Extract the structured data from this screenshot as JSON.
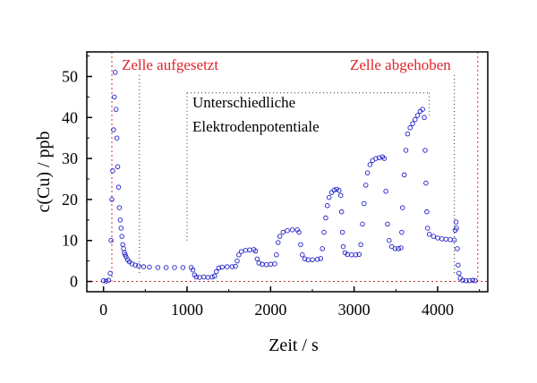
{
  "chart_data": {
    "type": "scatter",
    "title": "",
    "xlabel": "Zeit / s",
    "ylabel": "c(Cu) / ppb",
    "xlim": [
      -200,
      4600
    ],
    "ylim": [
      -2.5,
      56
    ],
    "xticks": [
      0,
      1000,
      2000,
      3000,
      4000
    ],
    "yticks": [
      0,
      10,
      20,
      30,
      40,
      50
    ],
    "grid": false,
    "legend": "none",
    "annotations": [
      {
        "text": "Zelle aufgesetzt",
        "color": "#e0242a"
      },
      {
        "text": "Zelle abgehoben",
        "color": "#e0242a"
      },
      {
        "text": "Unterschiedliche",
        "color": "#000000"
      },
      {
        "text": "Elektrodenpotentiale",
        "color": "#000000"
      }
    ],
    "reference_lines": {
      "zero_line_y": 0,
      "cell_on_x": 100,
      "cell_off_x": 4480,
      "potentials_window_x": [
        1000,
        3900
      ],
      "potentials_window_top_y": 46,
      "dotted_marker_x": [
        430,
        4200
      ]
    },
    "colors": {
      "marker": "#2020c8",
      "annotation": "#e0242a",
      "reference": "#c83030"
    },
    "series": [
      {
        "marker": "open-circle",
        "points": [
          [
            0,
            0.2
          ],
          [
            30,
            0.1
          ],
          [
            60,
            0.3
          ],
          [
            80,
            2
          ],
          [
            90,
            10
          ],
          [
            100,
            20
          ],
          [
            110,
            27
          ],
          [
            120,
            37
          ],
          [
            130,
            45
          ],
          [
            140,
            51
          ],
          [
            150,
            42
          ],
          [
            160,
            35
          ],
          [
            170,
            28
          ],
          [
            180,
            23
          ],
          [
            190,
            18
          ],
          [
            200,
            15
          ],
          [
            210,
            13
          ],
          [
            220,
            11
          ],
          [
            230,
            9
          ],
          [
            240,
            8
          ],
          [
            250,
            7
          ],
          [
            260,
            6.5
          ],
          [
            270,
            6
          ],
          [
            290,
            5.3
          ],
          [
            310,
            4.8
          ],
          [
            340,
            4.3
          ],
          [
            380,
            4
          ],
          [
            420,
            3.8
          ],
          [
            480,
            3.6
          ],
          [
            550,
            3.5
          ],
          [
            650,
            3.4
          ],
          [
            750,
            3.4
          ],
          [
            850,
            3.4
          ],
          [
            950,
            3.4
          ],
          [
            1050,
            3.4
          ],
          [
            1070,
            2.8
          ],
          [
            1090,
            1.6
          ],
          [
            1110,
            1.1
          ],
          [
            1150,
            1
          ],
          [
            1200,
            1.1
          ],
          [
            1250,
            1
          ],
          [
            1300,
            1.1
          ],
          [
            1330,
            1.3
          ],
          [
            1350,
            2.4
          ],
          [
            1380,
            3.3
          ],
          [
            1420,
            3.5
          ],
          [
            1480,
            3.6
          ],
          [
            1540,
            3.6
          ],
          [
            1580,
            3.7
          ],
          [
            1600,
            5
          ],
          [
            1620,
            6.5
          ],
          [
            1650,
            7.3
          ],
          [
            1700,
            7.6
          ],
          [
            1750,
            7.7
          ],
          [
            1800,
            7.8
          ],
          [
            1820,
            7.4
          ],
          [
            1840,
            5.5
          ],
          [
            1860,
            4.5
          ],
          [
            1900,
            4.2
          ],
          [
            1950,
            4.1
          ],
          [
            2000,
            4.2
          ],
          [
            2050,
            4.3
          ],
          [
            2070,
            6.5
          ],
          [
            2090,
            9.5
          ],
          [
            2110,
            11
          ],
          [
            2150,
            12
          ],
          [
            2200,
            12.4
          ],
          [
            2260,
            12.6
          ],
          [
            2320,
            12.6
          ],
          [
            2340,
            12
          ],
          [
            2360,
            9
          ],
          [
            2380,
            6.5
          ],
          [
            2410,
            5.5
          ],
          [
            2450,
            5.3
          ],
          [
            2500,
            5.3
          ],
          [
            2560,
            5.4
          ],
          [
            2600,
            5.6
          ],
          [
            2620,
            8
          ],
          [
            2640,
            12
          ],
          [
            2660,
            15.5
          ],
          [
            2680,
            18.5
          ],
          [
            2700,
            20.5
          ],
          [
            2730,
            21.7
          ],
          [
            2760,
            22.3
          ],
          [
            2790,
            22.5
          ],
          [
            2820,
            22.2
          ],
          [
            2840,
            21
          ],
          [
            2850,
            17
          ],
          [
            2860,
            12
          ],
          [
            2870,
            8.5
          ],
          [
            2890,
            7
          ],
          [
            2920,
            6.6
          ],
          [
            2970,
            6.5
          ],
          [
            3020,
            6.5
          ],
          [
            3060,
            6.6
          ],
          [
            3080,
            9
          ],
          [
            3100,
            14
          ],
          [
            3120,
            19
          ],
          [
            3140,
            23.5
          ],
          [
            3160,
            26.5
          ],
          [
            3190,
            28.5
          ],
          [
            3220,
            29.5
          ],
          [
            3260,
            30
          ],
          [
            3300,
            30.2
          ],
          [
            3340,
            30.4
          ],
          [
            3360,
            30
          ],
          [
            3380,
            22
          ],
          [
            3400,
            14
          ],
          [
            3420,
            10
          ],
          [
            3450,
            8.5
          ],
          [
            3490,
            8
          ],
          [
            3530,
            8
          ],
          [
            3560,
            8.2
          ],
          [
            3570,
            12
          ],
          [
            3580,
            18
          ],
          [
            3600,
            26
          ],
          [
            3620,
            32
          ],
          [
            3640,
            36
          ],
          [
            3670,
            37.5
          ],
          [
            3700,
            38.5
          ],
          [
            3730,
            39.5
          ],
          [
            3760,
            40.5
          ],
          [
            3790,
            41.5
          ],
          [
            3820,
            42
          ],
          [
            3840,
            40
          ],
          [
            3850,
            32
          ],
          [
            3860,
            24
          ],
          [
            3870,
            17
          ],
          [
            3880,
            13
          ],
          [
            3900,
            11.5
          ],
          [
            3950,
            11
          ],
          [
            4000,
            10.6
          ],
          [
            4050,
            10.4
          ],
          [
            4100,
            10.3
          ],
          [
            4150,
            10.2
          ],
          [
            4200,
            10.1
          ],
          [
            4210,
            12.5
          ],
          [
            4220,
            14.5
          ],
          [
            4225,
            13
          ],
          [
            4235,
            8
          ],
          [
            4245,
            4
          ],
          [
            4255,
            2
          ],
          [
            4270,
            0.8
          ],
          [
            4300,
            0.3
          ],
          [
            4340,
            0.2
          ],
          [
            4380,
            0.2
          ],
          [
            4420,
            0.3
          ],
          [
            4450,
            0.2
          ]
        ]
      }
    ]
  }
}
